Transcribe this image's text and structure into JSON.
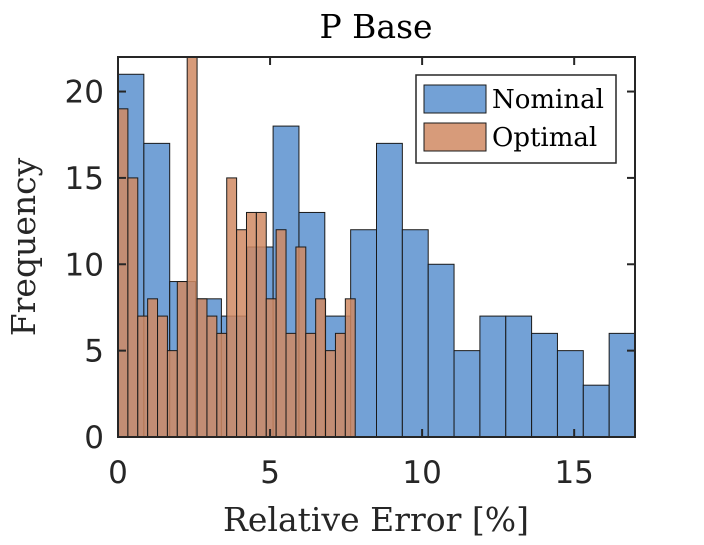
{
  "chart_data": {
    "type": "histogram",
    "title": "P Base",
    "xlabel": "Relative Error [%]",
    "ylabel": "Frequency",
    "xlim": [
      0,
      17
    ],
    "ylim": [
      0,
      22
    ],
    "xticks": [
      0,
      5,
      10,
      15
    ],
    "yticks": [
      0,
      5,
      10,
      15,
      20
    ],
    "grid": false,
    "legend_position": "top-right",
    "series": [
      {
        "name": "Nominal",
        "color": "#5b91cf",
        "bin_edges": [
          0,
          0.85,
          1.7,
          2.55,
          3.4,
          4.25,
          5.1,
          5.95,
          6.8,
          7.65,
          8.5,
          9.35,
          10.2,
          11.05,
          11.9,
          12.75,
          13.6,
          14.45,
          15.3,
          16.15,
          17.0
        ],
        "counts": [
          21,
          17,
          9,
          8,
          7,
          11,
          18,
          13,
          7,
          12,
          17,
          12,
          10,
          5,
          7,
          7,
          6,
          5,
          3,
          6
        ]
      },
      {
        "name": "Optimal",
        "color": "#d08a63",
        "bin_edges": [
          0,
          0.325,
          0.65,
          0.975,
          1.3,
          1.625,
          1.95,
          2.275,
          2.6,
          2.925,
          3.25,
          3.575,
          3.9,
          4.225,
          4.55,
          4.875,
          5.2,
          5.525,
          5.85,
          6.175,
          6.5,
          6.825,
          7.15,
          7.475,
          7.8
        ],
        "counts": [
          19,
          15,
          7,
          8,
          7,
          5,
          9,
          22,
          8,
          7,
          6,
          15,
          12,
          13,
          13,
          8,
          12,
          6,
          11,
          6,
          8,
          5,
          6,
          8
        ]
      }
    ]
  }
}
